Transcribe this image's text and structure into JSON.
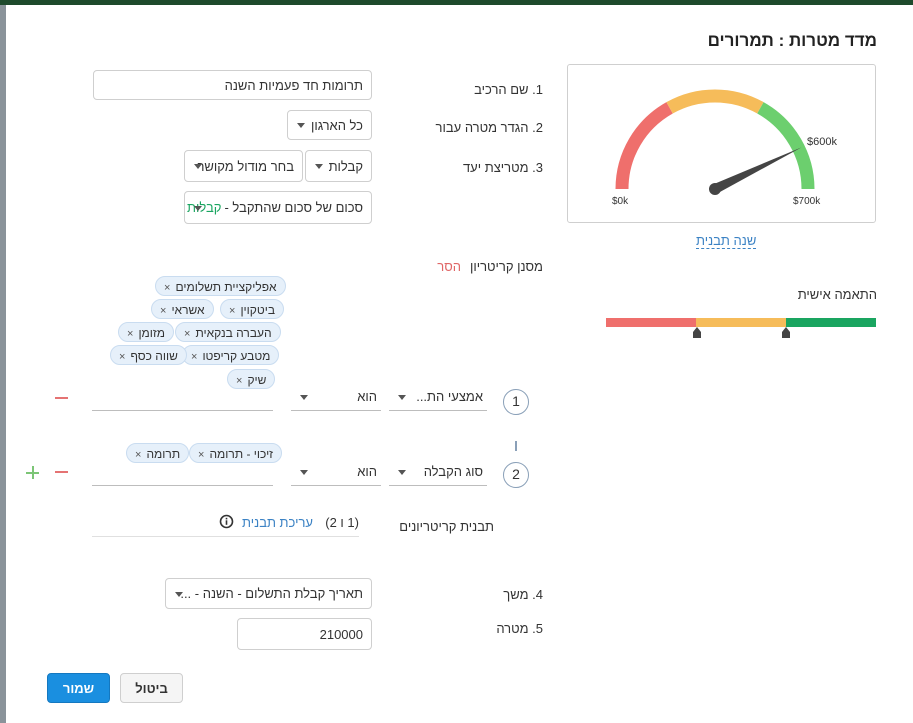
{
  "dialog": {
    "title": "מדד מטרות : תמרורים"
  },
  "fields": {
    "widget_name": {
      "label": "1. שם הרכיב",
      "value": "תרומות חד פעמיות השנה"
    },
    "target_for": {
      "label": "2. הגדר מטרה עבור",
      "value": "כל הארגון"
    },
    "target_metric": {
      "label": "3. מטריצת יעד",
      "module_value": "קבלות",
      "linked_module": "בחר מודול מקושר"
    },
    "aggregate": {
      "prefix": "סכום של סכום שהתקבל - ",
      "highlight": "קבלות"
    },
    "criteria_filter": {
      "label": "מסנן קריטריון",
      "remove": "הסר"
    },
    "duration": {
      "label": "4. משך",
      "value": "תאריך קבלת התשלום - השנה - ..."
    },
    "goal": {
      "label": "5. מטרה",
      "value": "210000"
    }
  },
  "criteria": [
    {
      "index": "1",
      "field": "אמצעי הת...",
      "operator": "הוא",
      "tags": [
        "אפליקציית תשלומים",
        "אשראי",
        "ביטקוין",
        "העברה בנקאית",
        "מזומן",
        "מטבע קריפטו",
        "שווה כסף",
        "שיק"
      ]
    },
    {
      "index": "2",
      "field": "סוג הקבלה",
      "operator": "הוא",
      "tags": [
        "זיכוי - תרומה",
        "תרומה"
      ]
    }
  ],
  "criteria_pattern": {
    "label": "תבנית קריטריונים",
    "value": "(1 ו 2)",
    "edit": "עריכת תבנית",
    "info_icon": "info-icon"
  },
  "gauge": {
    "min_label": "$0k",
    "max_label": "$700k",
    "value_label": "$600k",
    "min": 0,
    "max": 700,
    "value": 600,
    "change_template": "שנה תבנית",
    "colors": {
      "red": "#ef6f6c",
      "yellow": "#f6bc5a",
      "green": "#6ccf6e"
    }
  },
  "personalization": {
    "label": "התאמה אישית",
    "segments": [
      {
        "color": "#ef6f6c",
        "fraction": 0.333
      },
      {
        "color": "#f6bc5a",
        "fraction": 0.333
      },
      {
        "color": "#1aa560",
        "fraction": 0.334
      }
    ]
  },
  "buttons": {
    "cancel": "ביטול",
    "save": "שמור"
  },
  "tag_close_symbol": "×"
}
